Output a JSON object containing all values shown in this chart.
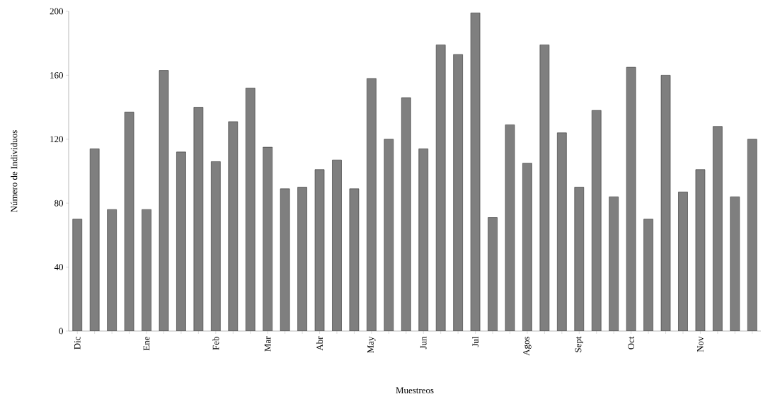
{
  "chart_data": {
    "type": "bar",
    "xlabel": "Muestreos",
    "ylabel": "Número de Individuos",
    "categories": [
      "Dic",
      null,
      null,
      null,
      "Ene",
      null,
      null,
      null,
      "Feb",
      null,
      null,
      "Mar",
      null,
      null,
      "Abr",
      null,
      null,
      "May",
      null,
      null,
      "Jun",
      null,
      null,
      "Jul",
      null,
      null,
      "Agos",
      null,
      null,
      "Sept",
      null,
      null,
      "Oct",
      null,
      null,
      null,
      "Nov",
      null,
      null,
      null
    ],
    "values": [
      70,
      114,
      76,
      137,
      76,
      163,
      112,
      140,
      106,
      131,
      152,
      115,
      89,
      90,
      101,
      107,
      89,
      158,
      120,
      146,
      114,
      179,
      173,
      199,
      71,
      129,
      105,
      179,
      124,
      90,
      138,
      84,
      165,
      70,
      160,
      87,
      101,
      128,
      84,
      120
    ],
    "color": "#7f7f7f",
    "ylim": [
      0,
      200
    ],
    "yticks": [
      0,
      40,
      80,
      120,
      160,
      200
    ]
  }
}
